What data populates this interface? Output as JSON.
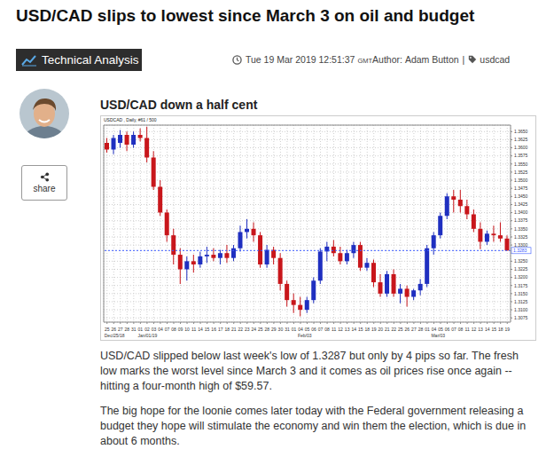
{
  "header": {
    "title": "USD/CAD slips to lowest since March 3 on oil and budget",
    "badge": "Technical Analysis",
    "date": "Tue 19 Mar 2019 12:51:37",
    "timezone": "GMT",
    "author_label": "Author:",
    "author": "Adam Button",
    "separator": "|",
    "tag": "usdcad"
  },
  "share": "share",
  "article": {
    "heading": "USD/CAD down a half cent",
    "paragraphs": [
      "USD/CAD slipped below last week's low of 1.3287 but only by 4 pips so far. The fresh low marks the worst level since March 3 and it comes as oil prices rise once again -- hitting a four-month high of $59.57.",
      "The big hope for the loonie comes later today with the Federal government releasing a budget they hope will stimulate the economy and win them the election, which is due in about 6 months."
    ]
  },
  "chart_data": {
    "type": "candlestick",
    "title": "USDCAD , Daily, #61 / 500",
    "categories": [
      "25",
      "26",
      "27",
      "28",
      "31",
      "01",
      "02",
      "03",
      "04",
      "07",
      "08",
      "09",
      "10",
      "11",
      "14",
      "15",
      "16",
      "17",
      "18",
      "21",
      "22",
      "23",
      "24",
      "25",
      "28",
      "29",
      "30",
      "31",
      "01",
      "04",
      "05",
      "06",
      "07",
      "08",
      "11",
      "12",
      "13",
      "14",
      "15",
      "18",
      "19",
      "20",
      "21",
      "22",
      "25",
      "26",
      "27",
      "28",
      "01",
      "04",
      "05",
      "06",
      "07",
      "08",
      "11",
      "12",
      "13",
      "14",
      "15",
      "18",
      "19"
    ],
    "month_labels": [
      "Dec/25/18",
      null,
      null,
      null,
      null,
      "Jan/01/19",
      null,
      null,
      null,
      null,
      null,
      null,
      null,
      null,
      null,
      null,
      null,
      null,
      null,
      null,
      null,
      null,
      null,
      null,
      null,
      null,
      null,
      null,
      null,
      "Feb/03",
      null,
      null,
      null,
      null,
      null,
      null,
      null,
      null,
      null,
      null,
      null,
      null,
      null,
      null,
      null,
      null,
      null,
      null,
      null,
      "Mar/03",
      null,
      null,
      null,
      null,
      null,
      null,
      null,
      null,
      null,
      null,
      null
    ],
    "open": [
      1.3615,
      1.3595,
      1.3615,
      1.364,
      1.361,
      1.364,
      1.363,
      1.357,
      1.348,
      1.34,
      1.333,
      1.327,
      1.3225,
      1.325,
      1.324,
      1.3265,
      1.327,
      1.326,
      1.3275,
      1.326,
      1.329,
      1.334,
      1.335,
      1.333,
      1.324,
      1.3285,
      1.326,
      1.318,
      1.313,
      1.3115,
      1.31,
      1.313,
      1.319,
      1.328,
      1.3295,
      1.3275,
      1.325,
      1.3275,
      1.33,
      1.323,
      1.3245,
      1.3185,
      1.315,
      1.321,
      1.315,
      1.3165,
      1.314,
      1.316,
      1.318,
      1.329,
      1.333,
      1.339,
      1.345,
      1.344,
      1.342,
      1.3395,
      1.335,
      1.331,
      1.3335,
      1.333,
      1.332
    ],
    "high": [
      1.363,
      1.364,
      1.3655,
      1.365,
      1.365,
      1.366,
      1.3665,
      1.359,
      1.35,
      1.341,
      1.335,
      1.329,
      1.3265,
      1.327,
      1.328,
      1.3295,
      1.329,
      1.3285,
      1.33,
      1.33,
      1.336,
      1.338,
      1.337,
      1.334,
      1.33,
      1.3295,
      1.3275,
      1.319,
      1.315,
      1.314,
      1.314,
      1.32,
      1.329,
      1.331,
      1.3315,
      1.3295,
      1.3285,
      1.331,
      1.331,
      1.326,
      1.3255,
      1.321,
      1.322,
      1.3225,
      1.318,
      1.3175,
      1.3165,
      1.3195,
      1.33,
      1.334,
      1.34,
      1.346,
      1.347,
      1.347,
      1.344,
      1.341,
      1.337,
      1.3345,
      1.336,
      1.337,
      1.333
    ],
    "low": [
      1.3585,
      1.358,
      1.36,
      1.359,
      1.36,
      1.362,
      1.3555,
      1.347,
      1.339,
      1.331,
      1.324,
      1.318,
      1.319,
      1.3215,
      1.323,
      1.3245,
      1.325,
      1.324,
      1.3245,
      1.325,
      1.328,
      1.332,
      1.331,
      1.323,
      1.323,
      1.324,
      1.316,
      1.311,
      1.309,
      1.308,
      1.309,
      1.312,
      1.318,
      1.325,
      1.3265,
      1.324,
      1.324,
      1.326,
      1.322,
      1.322,
      1.317,
      1.314,
      1.314,
      1.314,
      1.312,
      1.311,
      1.313,
      1.3145,
      1.317,
      1.327,
      1.332,
      1.338,
      1.34,
      1.34,
      1.338,
      1.334,
      1.3287,
      1.33,
      1.331,
      1.331,
      1.3283
    ],
    "close": [
      1.3595,
      1.363,
      1.364,
      1.361,
      1.364,
      1.363,
      1.357,
      1.348,
      1.34,
      1.333,
      1.327,
      1.3225,
      1.325,
      1.324,
      1.3265,
      1.327,
      1.326,
      1.3275,
      1.326,
      1.329,
      1.334,
      1.335,
      1.333,
      1.324,
      1.3285,
      1.326,
      1.318,
      1.313,
      1.3115,
      1.31,
      1.313,
      1.319,
      1.328,
      1.3295,
      1.3275,
      1.325,
      1.3275,
      1.33,
      1.323,
      1.3245,
      1.3185,
      1.315,
      1.321,
      1.315,
      1.3165,
      1.314,
      1.316,
      1.318,
      1.329,
      1.333,
      1.339,
      1.345,
      1.344,
      1.342,
      1.3395,
      1.335,
      1.331,
      1.3335,
      1.333,
      1.332,
      1.3283
    ],
    "colors": [
      "#c8161b",
      "#1f2fc0",
      "#1f2fc0",
      "#c8161b",
      "#1f2fc0",
      "#c8161b",
      "#c8161b",
      "#c8161b",
      "#c8161b",
      "#c8161b",
      "#c8161b",
      "#c8161b",
      "#1f2fc0",
      "#c8161b",
      "#1f2fc0",
      "#1f2fc0",
      "#c8161b",
      "#1f2fc0",
      "#c8161b",
      "#1f2fc0",
      "#1f2fc0",
      "#1f2fc0",
      "#c8161b",
      "#c8161b",
      "#1f2fc0",
      "#c8161b",
      "#c8161b",
      "#c8161b",
      "#c8161b",
      "#c8161b",
      "#1f2fc0",
      "#1f2fc0",
      "#1f2fc0",
      "#1f2fc0",
      "#c8161b",
      "#c8161b",
      "#1f2fc0",
      "#1f2fc0",
      "#c8161b",
      "#1f2fc0",
      "#c8161b",
      "#c8161b",
      "#1f2fc0",
      "#c8161b",
      "#1f2fc0",
      "#c8161b",
      "#1f2fc0",
      "#1f2fc0",
      "#1f2fc0",
      "#1f2fc0",
      "#1f2fc0",
      "#1f2fc0",
      "#c8161b",
      "#c8161b",
      "#c8161b",
      "#c8161b",
      "#c8161b",
      "#1f2fc0",
      "#c8161b",
      "#c8161b",
      "#c8161b"
    ],
    "price_line": {
      "value": 1.3283,
      "color": "#3b5bff"
    },
    "ylim": [
      1.3062,
      1.367
    ],
    "yticks": [
      1.3075,
      {
        "value": 1.31,
        "label": "1.3100"
      },
      1.3125,
      {
        "value": 1.315,
        "label": "1.3150"
      },
      1.3175,
      {
        "value": 1.32,
        "label": "1.3200"
      },
      1.3225,
      {
        "value": 1.325,
        "label": "1.3250"
      },
      {
        "value": 1.33,
        "label": "1.3300"
      },
      1.3325,
      {
        "value": 1.335,
        "label": "1.3350"
      },
      1.3375,
      {
        "value": 1.34,
        "label": "1.3400"
      },
      1.3425,
      {
        "value": 1.345,
        "label": "1.3450"
      },
      1.3475,
      {
        "value": 1.35,
        "label": "1.3500"
      },
      1.3525,
      {
        "value": 1.355,
        "label": "1.3550"
      },
      1.3575,
      {
        "value": 1.36,
        "label": "1.3600"
      },
      1.3625,
      {
        "value": 1.365,
        "label": "1.3650"
      }
    ],
    "grid": true
  }
}
